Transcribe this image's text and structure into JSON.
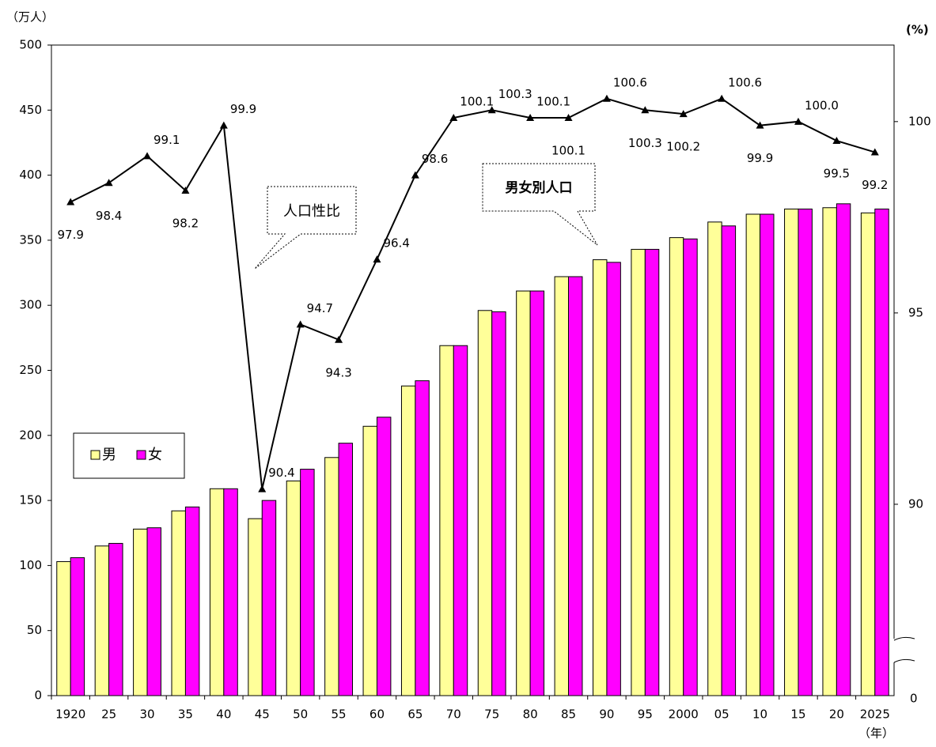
{
  "chart_data": {
    "type": "bar-line",
    "y_unit": "（万人）",
    "y2_unit": "(%)",
    "x_unit": "（年）",
    "categories": [
      "1920",
      "25",
      "30",
      "35",
      "40",
      "45",
      "50",
      "55",
      "60",
      "65",
      "70",
      "75",
      "80",
      "85",
      "90",
      "95",
      "2000",
      "05",
      "10",
      "15",
      "20",
      "2025"
    ],
    "series": [
      {
        "name": "男",
        "color": "#ffff99",
        "values": [
          103,
          115,
          128,
          142,
          159,
          136,
          165,
          183,
          207,
          238,
          269,
          296,
          311,
          322,
          335,
          343,
          352,
          364,
          370,
          374,
          375,
          371
        ]
      },
      {
        "name": "女",
        "color": "#ff00ff",
        "values": [
          106,
          117,
          129,
          145,
          159,
          150,
          174,
          194,
          214,
          242,
          269,
          295,
          311,
          322,
          333,
          343,
          351,
          361,
          370,
          374,
          378,
          374
        ]
      },
      {
        "name": "人口性比",
        "type": "line",
        "axis": "y2",
        "color": "#000000",
        "values": [
          97.9,
          98.4,
          99.1,
          98.2,
          99.9,
          90.4,
          94.7,
          94.3,
          96.4,
          98.6,
          100.1,
          100.3,
          100.1,
          100.1,
          100.6,
          100.3,
          100.2,
          100.6,
          99.9,
          100.0,
          99.5,
          99.2
        ],
        "value_labels": [
          "97.9",
          "98.4",
          "99.1",
          "98.2",
          "99.9",
          "90.4",
          "94.7",
          "94.3",
          "96.4",
          "98.6",
          "100.1",
          "100.3",
          "100.1",
          "100.1",
          "100.6",
          "100.3",
          "100.2",
          "100.6",
          "99.9",
          "100.0",
          "99.5",
          "99.2"
        ]
      }
    ],
    "ylim": [
      0,
      500
    ],
    "yticks": [
      0,
      50,
      100,
      150,
      200,
      250,
      300,
      350,
      400,
      450,
      500
    ],
    "y2lim": [
      85,
      102
    ],
    "y2ticks": [
      90,
      95,
      100
    ],
    "y2_bottom_label": "0",
    "annotations": [
      "人口性比",
      "男女別人口"
    ]
  }
}
